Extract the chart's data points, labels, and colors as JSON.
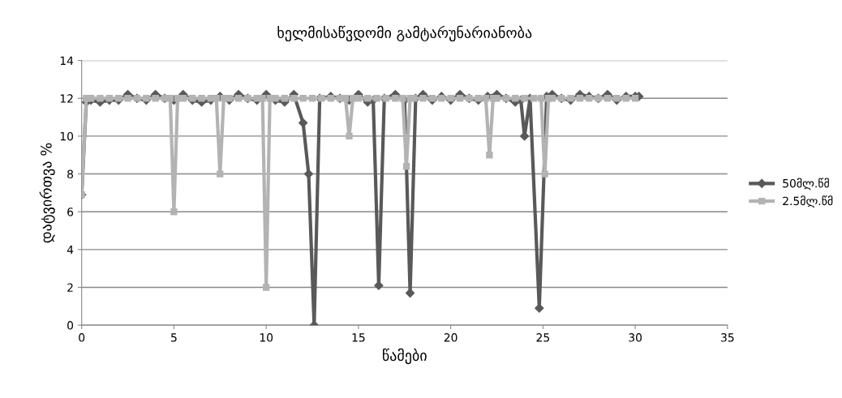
{
  "chart_data": {
    "type": "line",
    "title": "ხელმისაწვდომი გამტარუნარიანობა",
    "xlabel": "წამები",
    "ylabel": "დატვირთვა %",
    "xlim": [
      0,
      35
    ],
    "xticks": [
      0,
      5,
      10,
      15,
      20,
      25,
      30,
      35
    ],
    "ylim": [
      0,
      14
    ],
    "yticks": [
      0,
      2,
      4,
      6,
      8,
      10,
      12,
      14
    ],
    "grid": "y",
    "legend": "right",
    "series": [
      {
        "name": "50მლ.წმ",
        "color": "#595959",
        "marker": "diamond",
        "x": [
          0,
          0.25,
          0.5,
          1,
          1.5,
          2,
          2.5,
          3,
          3.5,
          4,
          4.5,
          5,
          5.5,
          6,
          6.5,
          7,
          7.5,
          8,
          8.5,
          9,
          9.5,
          10,
          10.5,
          11,
          11.5,
          12,
          12.3,
          12.6,
          12.9,
          13.5,
          14,
          14.5,
          15,
          15.5,
          15.8,
          16.1,
          16.4,
          17,
          17.5,
          17.8,
          18.1,
          18.5,
          19,
          19.5,
          20,
          20.5,
          21,
          21.5,
          22,
          22.5,
          23,
          23.5,
          23.8,
          24,
          24.3,
          24.8,
          25.2,
          25.5,
          26,
          26.5,
          27,
          27.5,
          28,
          28.5,
          29,
          29.5,
          30,
          30.2
        ],
        "values": [
          6.9,
          11.8,
          11.9,
          11.8,
          11.9,
          11.9,
          12.2,
          12,
          11.9,
          12.2,
          12,
          11.9,
          12.2,
          11.9,
          11.8,
          11.9,
          12.1,
          11.9,
          12.2,
          12,
          11.9,
          12.2,
          11.9,
          11.8,
          12.2,
          10.7,
          8,
          0,
          12,
          12.1,
          12,
          11.9,
          12.2,
          11.8,
          11.9,
          2.1,
          12,
          12.2,
          11.9,
          1.7,
          12,
          12.2,
          11.9,
          12.1,
          11.9,
          12.2,
          12,
          11.9,
          12.1,
          12.2,
          12,
          11.8,
          11.9,
          10,
          12,
          0.9,
          12.1,
          12.2,
          12,
          11.9,
          12.2,
          12.1,
          12,
          12.2,
          11.9,
          12.1,
          12.1,
          12.1
        ]
      },
      {
        "name": "2.5მლ.წმ",
        "color": "#b3b3b3",
        "marker": "square",
        "x": [
          0,
          0.25,
          0.5,
          1,
          1.5,
          2,
          2.5,
          3,
          3.5,
          4,
          4.5,
          4.8,
          5,
          5.2,
          5.5,
          6,
          6.5,
          7,
          7.3,
          7.5,
          7.7,
          8,
          8.5,
          9,
          9.5,
          9.8,
          10,
          10.2,
          10.5,
          11,
          11.5,
          12,
          12.5,
          13,
          13.5,
          14,
          14.3,
          14.5,
          14.7,
          15,
          15.5,
          16,
          16.5,
          17,
          17.4,
          17.6,
          17.8,
          18,
          18.5,
          19,
          19.5,
          20,
          20.5,
          21,
          21.5,
          21.9,
          22.1,
          22.3,
          22.5,
          23,
          23.5,
          24,
          24.5,
          24.9,
          25.1,
          25.3,
          25.5,
          26,
          26.5,
          27,
          27.5,
          28,
          28.5,
          29,
          29.5,
          30
        ],
        "values": [
          6.9,
          12,
          12,
          12,
          12,
          12,
          12,
          12,
          12,
          12,
          12,
          12,
          6,
          12,
          12,
          12,
          12,
          12,
          12,
          8,
          12,
          12,
          12,
          12,
          12,
          12,
          2,
          12,
          12,
          12,
          12,
          12,
          12,
          12,
          12,
          12,
          12,
          10,
          12,
          12,
          12,
          12,
          12,
          12,
          12,
          8.4,
          12,
          12,
          12,
          12,
          12,
          12,
          12,
          12,
          12,
          12,
          9,
          12,
          12,
          12,
          12,
          12,
          12,
          12,
          8,
          12,
          12,
          12,
          12,
          12,
          12,
          12,
          12,
          12,
          12,
          12
        ]
      }
    ]
  }
}
